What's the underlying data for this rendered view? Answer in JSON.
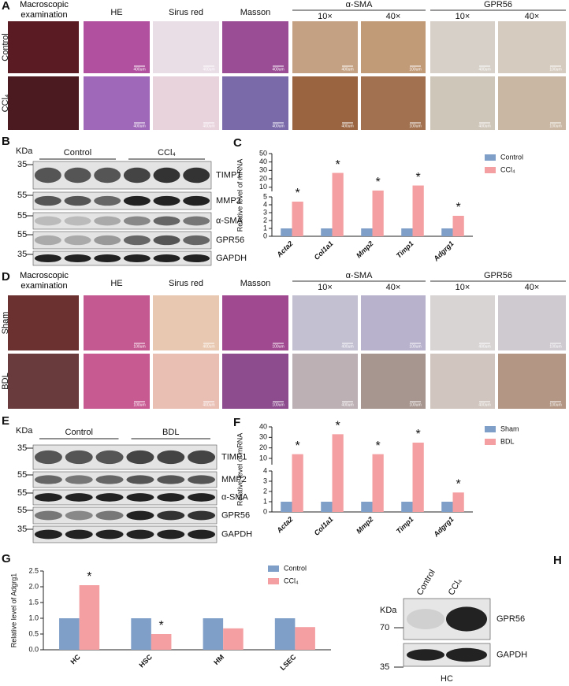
{
  "panel_a": {
    "label": "A",
    "macro": "Macroscopic examination",
    "he": "HE",
    "sirus": "Sirus red",
    "masson": "Masson",
    "asma": "α-SMA",
    "gpr56": "GPR56",
    "mag": [
      "10×",
      "40×",
      "10×",
      "40×"
    ],
    "rows": [
      "Control",
      "CCl₄"
    ],
    "scale_bars": [
      "400um",
      "400um",
      "400um",
      "400um",
      "100um",
      "400um",
      "100um"
    ]
  },
  "panel_b": {
    "label": "B",
    "kda": "KDa",
    "markers": [
      "35",
      "55",
      "55",
      "55",
      "35"
    ],
    "groups": [
      "Control",
      "CCl₄"
    ],
    "bands": [
      "TIMP1",
      "MMP2",
      "α-SMA",
      "GPR56",
      "GAPDH"
    ]
  },
  "panel_d": {
    "label": "D",
    "macro": "Macroscopic examination",
    "he": "HE",
    "sirus": "Sirus red",
    "masson": "Masson",
    "asma": "α-SMA",
    "gpr56": "GPR56",
    "mag": [
      "10×",
      "40×",
      "10×",
      "40×"
    ],
    "rows": [
      "Sham",
      "BDL"
    ],
    "scale_bars": [
      "100um",
      "400um",
      "100um",
      "400um",
      "100um",
      "400um",
      "100um"
    ]
  },
  "panel_e": {
    "label": "E",
    "kda": "KDa",
    "markers": [
      "35",
      "55",
      "55",
      "55",
      "35"
    ],
    "groups": [
      "Control",
      "BDL"
    ],
    "bands": [
      "TIMP1",
      "MMP2",
      "α-SMA",
      "GPR56",
      "GAPDH"
    ]
  },
  "panel_h": {
    "label": "H",
    "kda": "KDa",
    "markers": [
      "70",
      "35"
    ],
    "lanes": [
      "Control",
      "CCl₄"
    ],
    "bands": [
      "GPR56",
      "GAPDH"
    ],
    "cell": "HC"
  },
  "chart_data": [
    {
      "type": "bar",
      "label": "C",
      "ylabel": "Relative  level of mRNA",
      "categories": [
        "Acta2",
        "Col1a1",
        "Mmp2",
        "Timp1",
        "Adgrg1"
      ],
      "series": [
        {
          "name": "Control",
          "color": "#7f9fc8",
          "values": [
            1,
            1,
            1,
            1,
            1
          ]
        },
        {
          "name": "CCl₄",
          "color": "#f4a0a2",
          "values": [
            4.4,
            27,
            6,
            12,
            2.6
          ]
        }
      ],
      "ylim_lower": [
        0,
        5
      ],
      "yticks_lower": [
        0,
        1,
        2,
        3,
        4,
        5
      ],
      "ylim_upper": [
        5,
        50
      ],
      "yticks_upper": [
        10,
        20,
        30,
        40,
        50
      ],
      "annotations": [
        {
          "text": "*",
          "series": 1,
          "index": 0
        },
        {
          "text": "*",
          "series": 1,
          "index": 1
        },
        {
          "text": "*",
          "series": 1,
          "index": 2
        },
        {
          "text": "*",
          "series": 1,
          "index": 3
        },
        {
          "text": "*",
          "series": 1,
          "index": 4
        }
      ]
    },
    {
      "type": "bar",
      "label": "F",
      "ylabel": "Relative  level of mRNA",
      "categories": [
        "Acta2",
        "Col1a1",
        "Mmp2",
        "Timp1",
        "Adgrg1"
      ],
      "series": [
        {
          "name": "Sham",
          "color": "#7f9fc8",
          "values": [
            1,
            1,
            1,
            1,
            1
          ]
        },
        {
          "name": "BDL",
          "color": "#f4a0a2",
          "values": [
            14,
            33,
            14,
            25,
            1.9
          ]
        }
      ],
      "ylim_lower": [
        0,
        4
      ],
      "yticks_lower": [
        0,
        1,
        2,
        3,
        4
      ],
      "ylim_upper": [
        4,
        40
      ],
      "yticks_upper": [
        10,
        20,
        30,
        40
      ],
      "annotations": [
        {
          "text": "*",
          "series": 1,
          "index": 0
        },
        {
          "text": "*",
          "series": 1,
          "index": 1
        },
        {
          "text": "*",
          "series": 1,
          "index": 2
        },
        {
          "text": "*",
          "series": 1,
          "index": 3
        },
        {
          "text": "*",
          "series": 1,
          "index": 4
        }
      ]
    },
    {
      "type": "bar",
      "label": "G",
      "ylabel": "Relative level of Adgrg1",
      "categories": [
        "HC",
        "HSC",
        "HM",
        "LSEC"
      ],
      "series": [
        {
          "name": "Control",
          "color": "#7f9fc8",
          "values": [
            1,
            1,
            1,
            1
          ]
        },
        {
          "name": "CCl₄",
          "color": "#f4a0a2",
          "values": [
            2.05,
            0.5,
            0.68,
            0.72
          ]
        }
      ],
      "ylim": [
        0,
        2.5
      ],
      "yticks": [
        {
          "value": 0,
          "label": "0.0"
        },
        0.5,
        {
          "value": 1,
          "label": "1.0"
        },
        1.5,
        {
          "value": 2,
          "label": "2.0"
        },
        2.5
      ],
      "annotations": [
        {
          "text": "*",
          "series": 1,
          "index": 0
        },
        {
          "text": "*",
          "series": 1,
          "index": 1
        }
      ]
    }
  ]
}
